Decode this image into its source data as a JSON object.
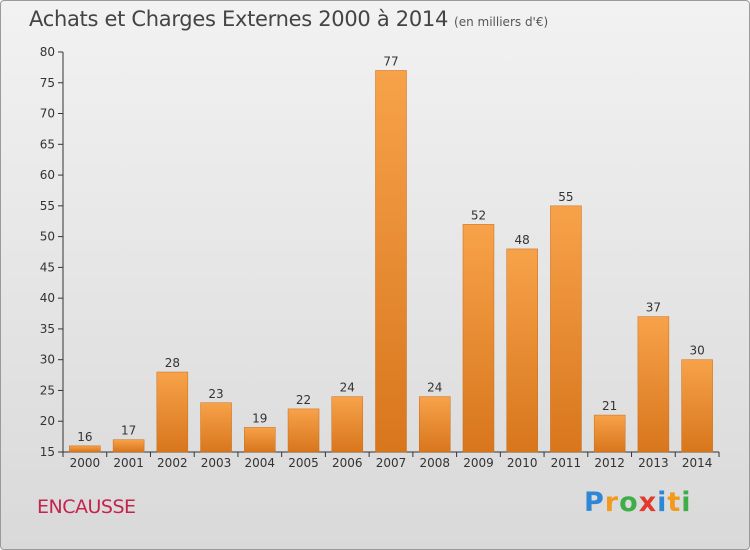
{
  "header": {
    "title": "Achats et Charges Externes 2000 à 2014",
    "unit": "(en milliers d'€)"
  },
  "footer": {
    "place": "ENCAUSSE",
    "logo": "Proxiti"
  },
  "colors": {
    "bar_light": "#f7a24a",
    "bar_dark": "#d8761c",
    "axis": "#333333",
    "place": "#c4234e"
  },
  "chart_data": {
    "type": "bar",
    "categories": [
      "2000",
      "2001",
      "2002",
      "2003",
      "2004",
      "2005",
      "2006",
      "2007",
      "2008",
      "2009",
      "2010",
      "2011",
      "2012",
      "2013",
      "2014"
    ],
    "values": [
      16,
      17,
      28,
      23,
      19,
      22,
      24,
      77,
      24,
      52,
      48,
      55,
      21,
      37,
      30
    ],
    "title": "Achats et Charges Externes 2000 à 2014",
    "subtitle": "(en milliers d'€)",
    "ylim": [
      15,
      80
    ],
    "yticks": [
      15,
      20,
      25,
      30,
      35,
      40,
      45,
      50,
      55,
      60,
      65,
      70,
      75,
      80
    ],
    "grid": false,
    "data_labels": true
  }
}
